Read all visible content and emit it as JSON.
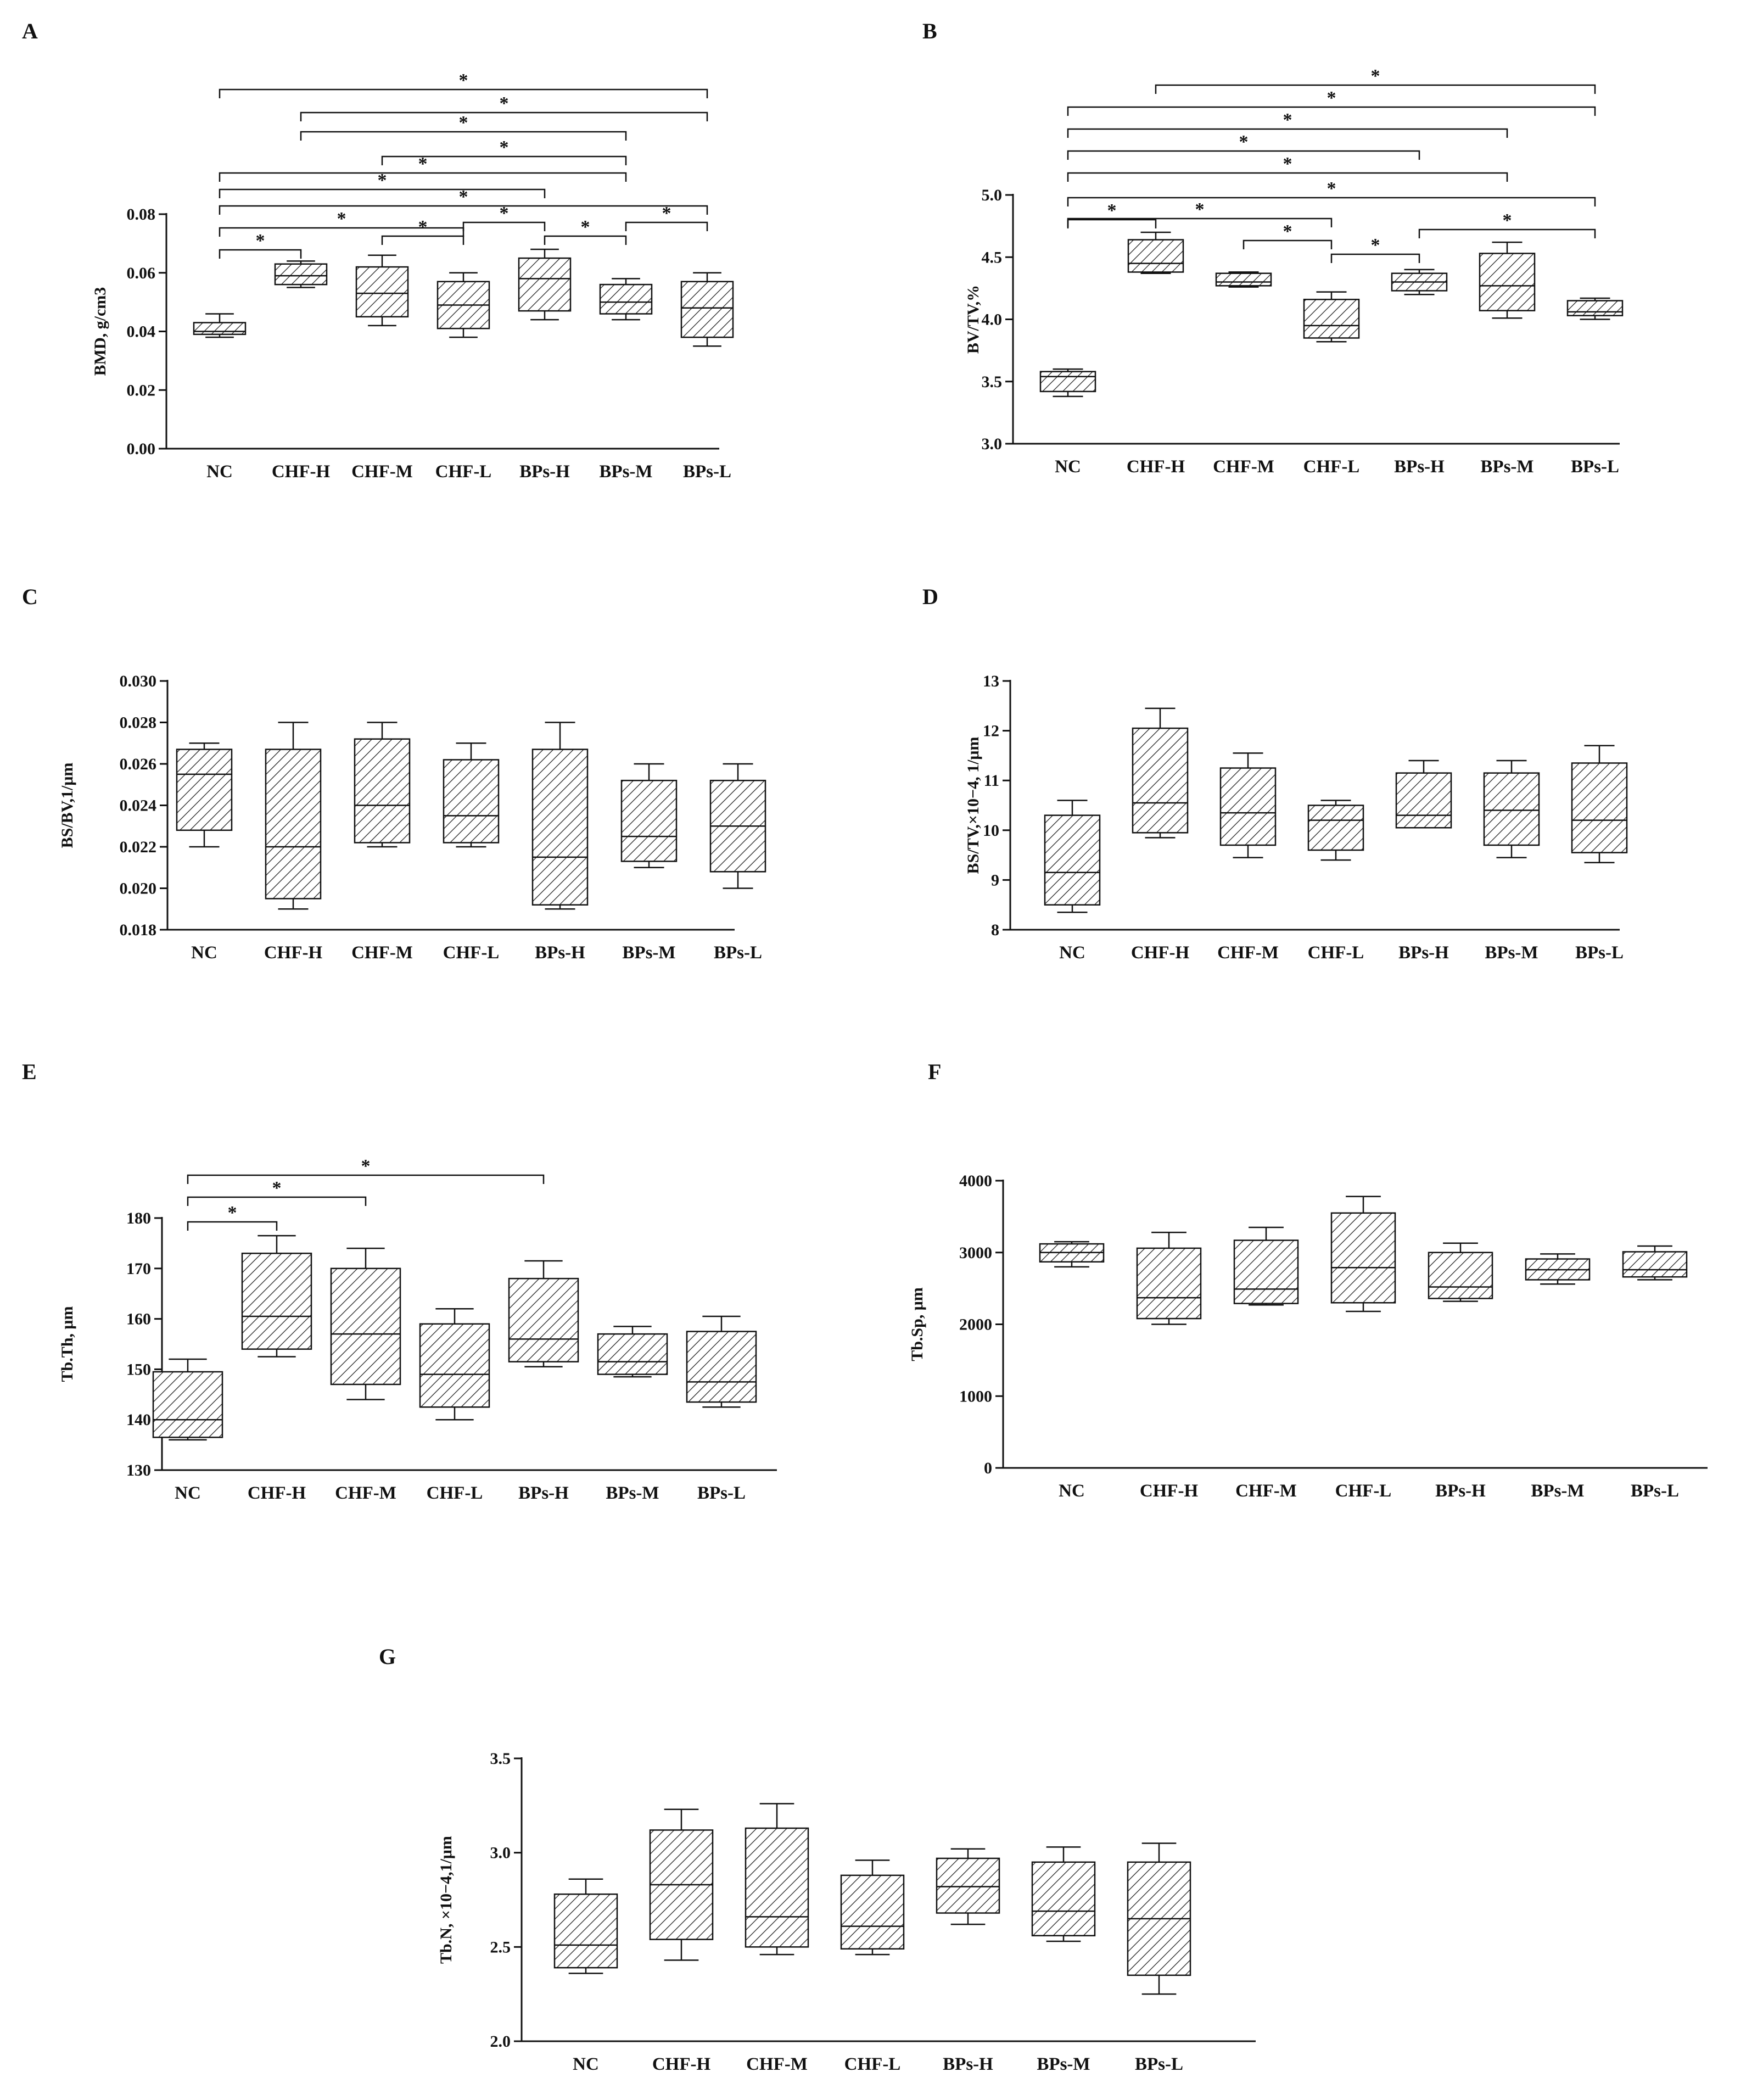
{
  "colors": {
    "ink": "#111111",
    "background": "#ffffff",
    "hatch": "#222222"
  },
  "chart_data": [
    {
      "panel": "A",
      "type": "box",
      "categories": [
        "NC",
        "CHF-H",
        "CHF-M",
        "CHF-L",
        "BPs-H",
        "BPs-M",
        "BPs-L"
      ],
      "ylabel": "BMD,   g/cm3",
      "ylim": [
        0,
        0.08
      ],
      "yticks": [
        0.0,
        0.02,
        0.04,
        0.06,
        0.08
      ],
      "ytick_labels": [
        "0.00",
        "0.02",
        "0.04",
        "0.06",
        "0.08"
      ],
      "boxes": [
        {
          "min": 0.038,
          "q1": 0.039,
          "median": 0.04,
          "q3": 0.043,
          "max": 0.046
        },
        {
          "min": 0.055,
          "q1": 0.056,
          "median": 0.059,
          "q3": 0.063,
          "max": 0.064
        },
        {
          "min": 0.042,
          "q1": 0.045,
          "median": 0.053,
          "q3": 0.062,
          "max": 0.066
        },
        {
          "min": 0.038,
          "q1": 0.041,
          "median": 0.049,
          "q3": 0.057,
          "max": 0.06
        },
        {
          "min": 0.044,
          "q1": 0.047,
          "median": 0.058,
          "q3": 0.065,
          "max": 0.068
        },
        {
          "min": 0.044,
          "q1": 0.046,
          "median": 0.05,
          "q3": 0.056,
          "max": 0.058
        },
        {
          "min": 0.035,
          "q1": 0.038,
          "median": 0.048,
          "q3": 0.057,
          "max": 0.06
        }
      ],
      "significance": [
        {
          "from": 0,
          "to": 1,
          "label": "*"
        },
        {
          "from": 0,
          "to": 3,
          "label": "*"
        },
        {
          "from": 2,
          "to": 3,
          "label": "*"
        },
        {
          "from": 3,
          "to": 4,
          "label": "*"
        },
        {
          "from": 4,
          "to": 5,
          "label": "*"
        },
        {
          "from": 5,
          "to": 6,
          "label": "*"
        },
        {
          "from": 0,
          "to": 6,
          "label": "*"
        },
        {
          "from": 0,
          "to": 4,
          "label": "*"
        },
        {
          "from": 0,
          "to": 5,
          "label": "*"
        },
        {
          "from": 2,
          "to": 5,
          "label": "*"
        },
        {
          "from": 1,
          "to": 5,
          "label": "*"
        },
        {
          "from": 1,
          "to": 6,
          "label": "*"
        },
        {
          "from": 0,
          "to": 6,
          "label": "*"
        }
      ]
    },
    {
      "panel": "B",
      "type": "box",
      "categories": [
        "NC",
        "CHF-H",
        "CHF-M",
        "CHF-L",
        "BPs-H",
        "BPs-M",
        "BPs-L"
      ],
      "ylabel": "BV/TV,%",
      "ylim": [
        3.0,
        5.0
      ],
      "yticks": [
        3.0,
        3.5,
        4.0,
        4.5,
        5.0
      ],
      "ytick_labels": [
        "3.0",
        "3.5",
        "4.0",
        "4.5",
        "5.0"
      ],
      "boxes": [
        {
          "min": 3.38,
          "q1": 3.42,
          "median": 3.54,
          "q3": 3.58,
          "max": 3.6
        },
        {
          "min": 4.37,
          "q1": 4.38,
          "median": 4.45,
          "q3": 4.64,
          "max": 4.7
        },
        {
          "min": 4.26,
          "q1": 4.27,
          "median": 4.3,
          "q3": 4.37,
          "max": 4.38
        },
        {
          "min": 3.82,
          "q1": 3.85,
          "median": 3.95,
          "q3": 4.16,
          "max": 4.22
        },
        {
          "min": 4.2,
          "q1": 4.23,
          "median": 4.3,
          "q3": 4.37,
          "max": 4.4
        },
        {
          "min": 4.01,
          "q1": 4.07,
          "median": 4.27,
          "q3": 4.53,
          "max": 4.62
        },
        {
          "min": 4.0,
          "q1": 4.03,
          "median": 4.06,
          "q3": 4.15,
          "max": 4.17
        }
      ],
      "significance": [
        {
          "from": 0,
          "to": 1,
          "label": "*"
        },
        {
          "from": 0,
          "to": 3,
          "label": "*"
        },
        {
          "from": 2,
          "to": 3,
          "label": "*"
        },
        {
          "from": 3,
          "to": 4,
          "label": "*"
        },
        {
          "from": 4,
          "to": 6,
          "label": "*"
        },
        {
          "from": 0,
          "to": 6,
          "label": "*"
        },
        {
          "from": 0,
          "to": 5,
          "label": "*"
        },
        {
          "from": 0,
          "to": 4,
          "label": "*"
        },
        {
          "from": 0,
          "to": 5,
          "label": "*"
        },
        {
          "from": 0,
          "to": 6,
          "label": "*"
        },
        {
          "from": 1,
          "to": 6,
          "label": "*"
        }
      ]
    },
    {
      "panel": "C",
      "type": "box",
      "categories": [
        "NC",
        "CHF-H",
        "CHF-M",
        "CHF-L",
        "BPs-H",
        "BPs-M",
        "BPs-L"
      ],
      "ylabel": "BS/BV,1/μm",
      "ylim": [
        0.018,
        0.03
      ],
      "yticks": [
        0.018,
        0.02,
        0.022,
        0.024,
        0.026,
        0.028,
        0.03
      ],
      "ytick_labels": [
        "0.018",
        "0.020",
        "0.022",
        "0.024",
        "0.026",
        "0.028",
        "0.030"
      ],
      "boxes": [
        {
          "min": 0.022,
          "q1": 0.0228,
          "median": 0.0255,
          "q3": 0.0267,
          "max": 0.027
        },
        {
          "min": 0.019,
          "q1": 0.0195,
          "median": 0.022,
          "q3": 0.0267,
          "max": 0.028
        },
        {
          "min": 0.022,
          "q1": 0.0222,
          "median": 0.024,
          "q3": 0.0272,
          "max": 0.028
        },
        {
          "min": 0.022,
          "q1": 0.0222,
          "median": 0.0235,
          "q3": 0.0262,
          "max": 0.027
        },
        {
          "min": 0.019,
          "q1": 0.0192,
          "median": 0.0215,
          "q3": 0.0267,
          "max": 0.028
        },
        {
          "min": 0.021,
          "q1": 0.0213,
          "median": 0.0225,
          "q3": 0.0252,
          "max": 0.026
        },
        {
          "min": 0.02,
          "q1": 0.0208,
          "median": 0.023,
          "q3": 0.0252,
          "max": 0.026
        }
      ],
      "significance": []
    },
    {
      "panel": "D",
      "type": "box",
      "categories": [
        "NC",
        "CHF-H",
        "CHF-M",
        "CHF-L",
        "BPs-H",
        "BPs-M",
        "BPs-L"
      ],
      "ylabel": "BS/TV,×10−4, 1/μm",
      "ylim": [
        8,
        13
      ],
      "yticks": [
        8,
        9,
        10,
        11,
        12,
        13
      ],
      "ytick_labels": [
        "8",
        "9",
        "10",
        "11",
        "12",
        "13"
      ],
      "boxes": [
        {
          "min": 8.35,
          "q1": 8.5,
          "median": 9.15,
          "q3": 10.3,
          "max": 10.6
        },
        {
          "min": 9.85,
          "q1": 9.95,
          "median": 10.55,
          "q3": 12.05,
          "max": 12.45
        },
        {
          "min": 9.45,
          "q1": 9.7,
          "median": 10.35,
          "q3": 11.25,
          "max": 11.55
        },
        {
          "min": 9.4,
          "q1": 9.6,
          "median": 10.2,
          "q3": 10.5,
          "max": 10.6
        },
        {
          "min": 10.05,
          "q1": 10.05,
          "median": 10.3,
          "q3": 11.15,
          "max": 11.4
        },
        {
          "min": 9.45,
          "q1": 9.7,
          "median": 10.4,
          "q3": 11.15,
          "max": 11.4
        },
        {
          "min": 9.35,
          "q1": 9.55,
          "median": 10.2,
          "q3": 11.35,
          "max": 11.7
        }
      ],
      "significance": []
    },
    {
      "panel": "E",
      "type": "box",
      "categories": [
        "NC",
        "CHF-H",
        "CHF-M",
        "CHF-L",
        "BPs-H",
        "BPs-M",
        "BPs-L"
      ],
      "ylabel": "Tb.Th, μm",
      "ylim": [
        130,
        180
      ],
      "yticks": [
        130,
        140,
        150,
        160,
        170,
        180
      ],
      "ytick_labels": [
        "130",
        "140",
        "150",
        "160",
        "170",
        "180"
      ],
      "boxes": [
        {
          "min": 136,
          "q1": 136.5,
          "median": 140,
          "q3": 149.5,
          "max": 152
        },
        {
          "min": 152.5,
          "q1": 154,
          "median": 160.5,
          "q3": 173,
          "max": 176.5
        },
        {
          "min": 144,
          "q1": 147,
          "median": 157,
          "q3": 170,
          "max": 174
        },
        {
          "min": 140,
          "q1": 142.5,
          "median": 149,
          "q3": 159,
          "max": 162
        },
        {
          "min": 150.5,
          "q1": 151.5,
          "median": 156,
          "q3": 168,
          "max": 171.5
        },
        {
          "min": 148.5,
          "q1": 149,
          "median": 151.5,
          "q3": 157,
          "max": 158.5
        },
        {
          "min": 142.5,
          "q1": 143.5,
          "median": 147.5,
          "q3": 157.5,
          "max": 160.5
        }
      ],
      "significance": [
        {
          "from": 0,
          "to": 1,
          "label": "*"
        },
        {
          "from": 0,
          "to": 2,
          "label": "*"
        },
        {
          "from": 0,
          "to": 4,
          "label": "*"
        }
      ]
    },
    {
      "panel": "F",
      "type": "box",
      "categories": [
        "NC",
        "CHF-H",
        "CHF-M",
        "CHF-L",
        "BPs-H",
        "BPs-M",
        "BPs-L"
      ],
      "ylabel": "Tb.Sp, μm",
      "ylim": [
        0,
        4000
      ],
      "yticks": [
        0,
        1000,
        2000,
        3000,
        4000
      ],
      "ytick_labels": [
        "0",
        "1000",
        "2000",
        "3000",
        "4000"
      ],
      "boxes": [
        {
          "min": 2800,
          "q1": 2870,
          "median": 3000,
          "q3": 3120,
          "max": 3150
        },
        {
          "min": 2000,
          "q1": 2080,
          "median": 2370,
          "q3": 3060,
          "max": 3280
        },
        {
          "min": 2270,
          "q1": 2290,
          "median": 2490,
          "q3": 3170,
          "max": 3350
        },
        {
          "min": 2180,
          "q1": 2300,
          "median": 2790,
          "q3": 3550,
          "max": 3780
        },
        {
          "min": 2320,
          "q1": 2360,
          "median": 2520,
          "q3": 3000,
          "max": 3130
        },
        {
          "min": 2560,
          "q1": 2620,
          "median": 2760,
          "q3": 2910,
          "max": 2980
        },
        {
          "min": 2620,
          "q1": 2660,
          "median": 2760,
          "q3": 3010,
          "max": 3090
        }
      ],
      "significance": []
    },
    {
      "panel": "G",
      "type": "box",
      "categories": [
        "NC",
        "CHF-H",
        "CHF-M",
        "CHF-L",
        "BPs-H",
        "BPs-M",
        "BPs-L"
      ],
      "ylabel": "Tb.N, ×10−4,1/μm",
      "ylim": [
        2.0,
        3.5
      ],
      "yticks": [
        2.0,
        2.5,
        3.0,
        3.5
      ],
      "ytick_labels": [
        "2.0",
        "2.5",
        "3.0",
        "3.5"
      ],
      "boxes": [
        {
          "min": 2.36,
          "q1": 2.39,
          "median": 2.51,
          "q3": 2.78,
          "max": 2.86
        },
        {
          "min": 2.43,
          "q1": 2.54,
          "median": 2.83,
          "q3": 3.12,
          "max": 3.23
        },
        {
          "min": 2.46,
          "q1": 2.5,
          "median": 2.66,
          "q3": 3.13,
          "max": 3.26
        },
        {
          "min": 2.46,
          "q1": 2.49,
          "median": 2.61,
          "q3": 2.88,
          "max": 2.96
        },
        {
          "min": 2.62,
          "q1": 2.68,
          "median": 2.82,
          "q3": 2.97,
          "max": 3.02
        },
        {
          "min": 2.53,
          "q1": 2.56,
          "median": 2.69,
          "q3": 2.95,
          "max": 3.03
        },
        {
          "min": 2.25,
          "q1": 2.35,
          "median": 2.65,
          "q3": 2.95,
          "max": 3.05
        }
      ],
      "significance": []
    }
  ]
}
